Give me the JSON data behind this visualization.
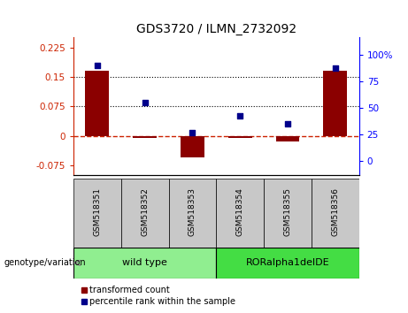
{
  "title": "GDS3720 / ILMN_2732092",
  "categories": [
    "GSM518351",
    "GSM518352",
    "GSM518353",
    "GSM518354",
    "GSM518355",
    "GSM518356"
  ],
  "red_bars": [
    0.165,
    -0.005,
    -0.055,
    -0.005,
    -0.015,
    0.165
  ],
  "blue_dots": [
    90,
    55,
    27,
    43,
    35,
    88
  ],
  "ylim_left": [
    -0.1,
    0.25
  ],
  "ylim_right": [
    -13.33,
    116.67
  ],
  "yticks_left": [
    -0.075,
    0,
    0.075,
    0.15,
    0.225
  ],
  "ytick_labels_left": [
    "-0.075",
    "0",
    "0.075",
    "0.15",
    "0.225"
  ],
  "yticks_right": [
    0,
    25,
    50,
    75,
    100
  ],
  "ytick_labels_right": [
    "0",
    "25",
    "50",
    "75",
    "100%"
  ],
  "hlines": [
    0.15,
    0.075
  ],
  "zero_line": 0.0,
  "group1_label": "wild type",
  "group2_label": "RORalpha1delDE",
  "group1_indices": [
    0,
    1,
    2
  ],
  "group2_indices": [
    3,
    4,
    5
  ],
  "group1_color": "#90EE90",
  "group2_color": "#44DD44",
  "label_genotype": "genotype/variation",
  "legend_red": "transformed count",
  "legend_blue": "percentile rank within the sample",
  "bar_color": "#8B0000",
  "dot_color": "#00008B",
  "cat_bg": "#C8C8C8",
  "axes_bg": "#FFFFFF"
}
